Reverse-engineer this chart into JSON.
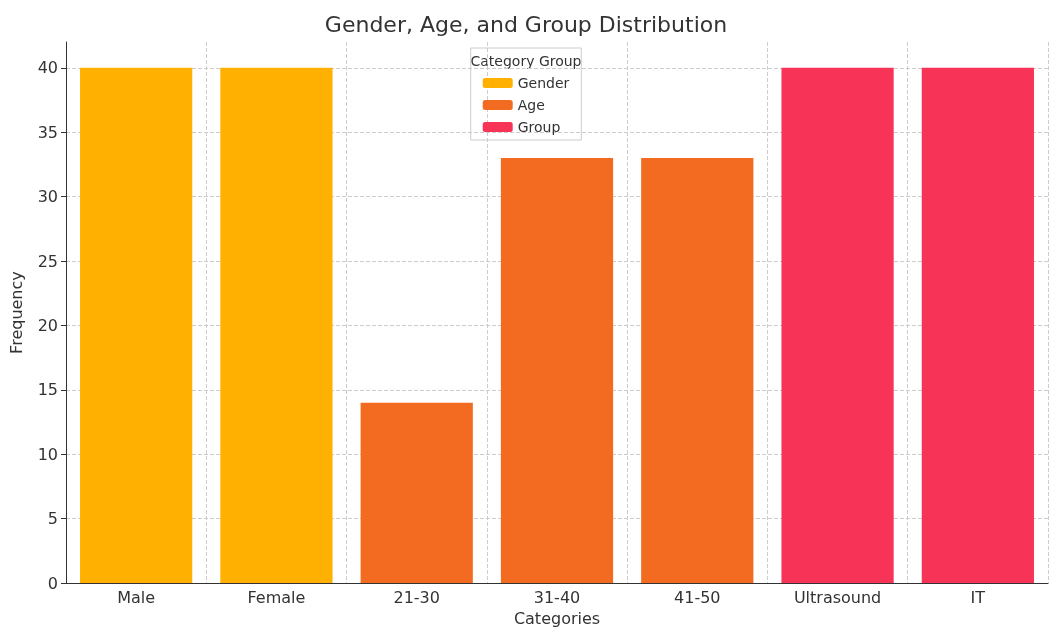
{
  "chart_data": {
    "type": "bar",
    "title": "Gender, Age, and Group Distribution",
    "xlabel": "Categories",
    "ylabel": "Frequency",
    "legend_title": "Category Group",
    "categories": [
      "Male",
      "Female",
      "21-30",
      "31-40",
      "41-50",
      "Ultrasound",
      "IT"
    ],
    "series": [
      {
        "name": "Gender",
        "color": "#ffb000",
        "values": [
          40,
          40,
          null,
          null,
          null,
          null,
          null
        ]
      },
      {
        "name": "Age",
        "color": "#f26b21",
        "values": [
          null,
          null,
          14,
          33,
          33,
          null,
          null
        ]
      },
      {
        "name": "Group",
        "color": "#f73357",
        "values": [
          null,
          null,
          null,
          null,
          null,
          40,
          40
        ]
      }
    ],
    "ylim": [
      0,
      42
    ],
    "yticks": [
      0,
      5,
      10,
      15,
      20,
      25,
      30,
      35,
      40
    ],
    "grid": true,
    "legend": "top"
  }
}
